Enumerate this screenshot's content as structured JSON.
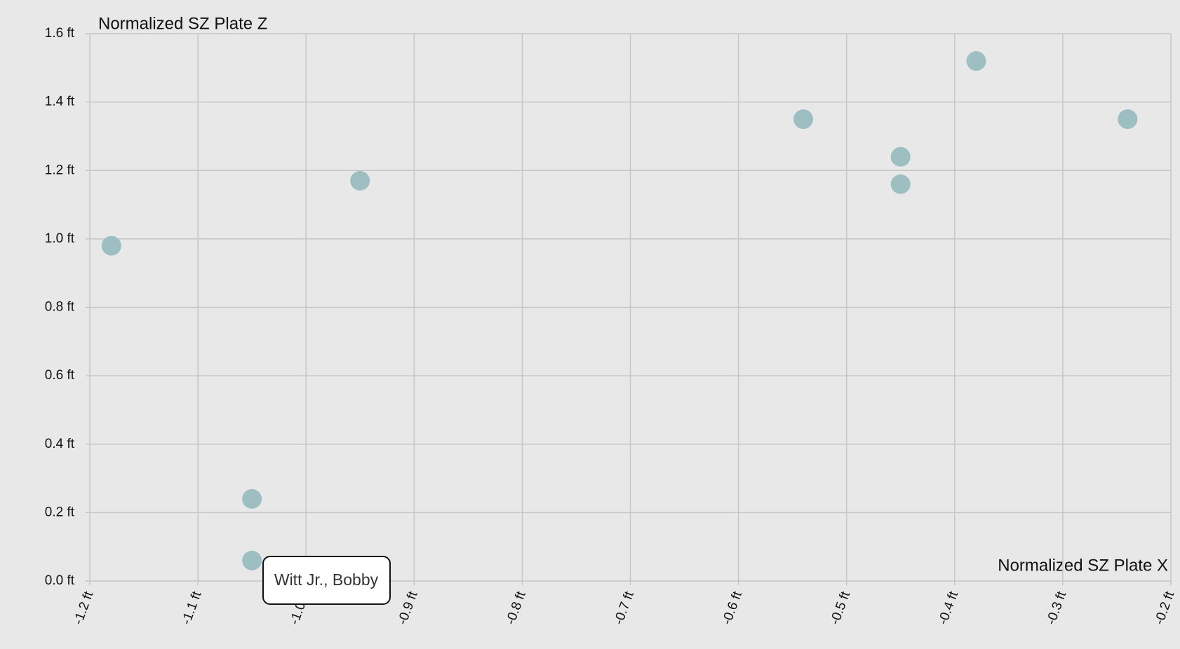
{
  "chart_data": {
    "type": "scatter",
    "y_title": "Normalized SZ Plate Z",
    "x_title": "Normalized SZ Plate X",
    "color": "#9dbfc2",
    "grid": true,
    "x": [
      -1.18,
      -1.05,
      -1.05,
      -0.95,
      -0.54,
      -0.45,
      -0.45,
      -0.38,
      -0.24
    ],
    "values": [
      0.98,
      0.24,
      0.06,
      1.17,
      1.35,
      1.24,
      1.16,
      1.52,
      1.35
    ],
    "xlim": [
      -1.2,
      -0.2
    ],
    "ylim": [
      0,
      1.6
    ],
    "xticks": [
      {
        "value": -1.2,
        "label": "-1.2 ft"
      },
      {
        "value": -1.1,
        "label": "-1.1 ft"
      },
      {
        "value": -1.0,
        "label": "-1.0 ft"
      },
      {
        "value": -0.9,
        "label": "-0.9 ft"
      },
      {
        "value": -0.8,
        "label": "-0.8 ft"
      },
      {
        "value": -0.7,
        "label": "-0.7 ft"
      },
      {
        "value": -0.6,
        "label": "-0.6 ft"
      },
      {
        "value": -0.5,
        "label": "-0.5 ft"
      },
      {
        "value": -0.4,
        "label": "-0.4 ft"
      },
      {
        "value": -0.3,
        "label": "-0.3 ft"
      },
      {
        "value": -0.2,
        "label": "-0.2 ft"
      }
    ],
    "yticks": [
      {
        "value": 0,
        "label": "0.0 ft"
      },
      {
        "value": 0.2,
        "label": "0.2 ft"
      },
      {
        "value": 0.4,
        "label": "0.4 ft"
      },
      {
        "value": 0.6,
        "label": "0.6 ft"
      },
      {
        "value": 0.8,
        "label": "0.8 ft"
      },
      {
        "value": 1.0,
        "label": "1.0 ft"
      },
      {
        "value": 1.2,
        "label": "1.2 ft"
      },
      {
        "value": 1.4,
        "label": "1.4 ft"
      },
      {
        "value": 1.6,
        "label": "1.6 ft"
      }
    ],
    "tooltip": "Witt Jr., Bobby"
  }
}
